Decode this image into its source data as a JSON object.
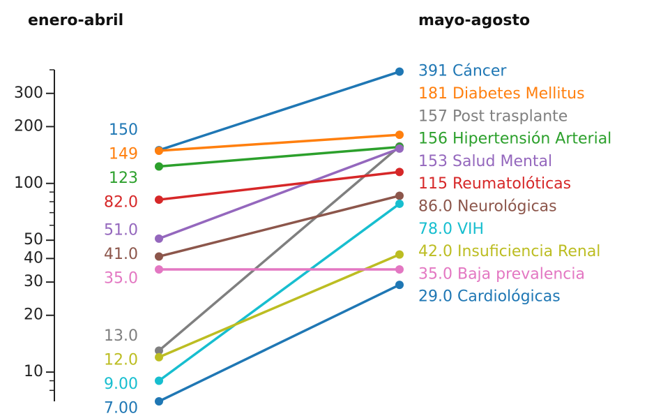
{
  "chart_data": {
    "type": "slope",
    "categories": [
      "enero-abril",
      "mayo-agosto"
    ],
    "yscale": "log",
    "ylim": [
      7,
      400
    ],
    "yticks": [
      10,
      20,
      30,
      40,
      50,
      100,
      200,
      300
    ],
    "yminorticks": [
      8,
      9,
      60,
      70,
      80,
      90,
      400
    ],
    "series": [
      {
        "name": "Cáncer",
        "color": "#1f77b4",
        "values": [
          150,
          391
        ],
        "value_labels": [
          "150",
          "391"
        ]
      },
      {
        "name": "Diabetes Mellitus",
        "color": "#ff7f0e",
        "values": [
          149,
          181
        ],
        "value_labels": [
          "149",
          "181"
        ]
      },
      {
        "name": "Post trasplante",
        "color": "#7f7f7f",
        "values": [
          13,
          157
        ],
        "value_labels": [
          "13.0",
          "157"
        ]
      },
      {
        "name": "Hipertensión Arterial",
        "color": "#2ca02c",
        "values": [
          123,
          156
        ],
        "value_labels": [
          "123",
          "156"
        ]
      },
      {
        "name": "Salud Mental",
        "color": "#9467bd",
        "values": [
          51,
          153
        ],
        "value_labels": [
          "51.0",
          "153"
        ]
      },
      {
        "name": "Reumatolóticas",
        "color": "#d62728",
        "values": [
          82,
          115
        ],
        "value_labels": [
          "82.0",
          "115"
        ]
      },
      {
        "name": "Neurológicas",
        "color": "#8c564b",
        "values": [
          41,
          86
        ],
        "value_labels": [
          "41.0",
          "86.0"
        ]
      },
      {
        "name": "VIH",
        "color": "#17becf",
        "values": [
          9,
          78
        ],
        "value_labels": [
          "9.00",
          "78.0"
        ]
      },
      {
        "name": "Insuficiencia Renal",
        "color": "#bcbd22",
        "values": [
          12,
          42
        ],
        "value_labels": [
          "12.0",
          "42.0"
        ]
      },
      {
        "name": "Baja prevalencia",
        "color": "#e377c2",
        "values": [
          35,
          35
        ],
        "value_labels": [
          "35.0",
          "35.0"
        ]
      },
      {
        "name": "Cardiológicas",
        "color": "#1f77b4",
        "values": [
          7,
          29
        ],
        "value_labels": [
          "7.00",
          "29.0"
        ]
      }
    ]
  }
}
